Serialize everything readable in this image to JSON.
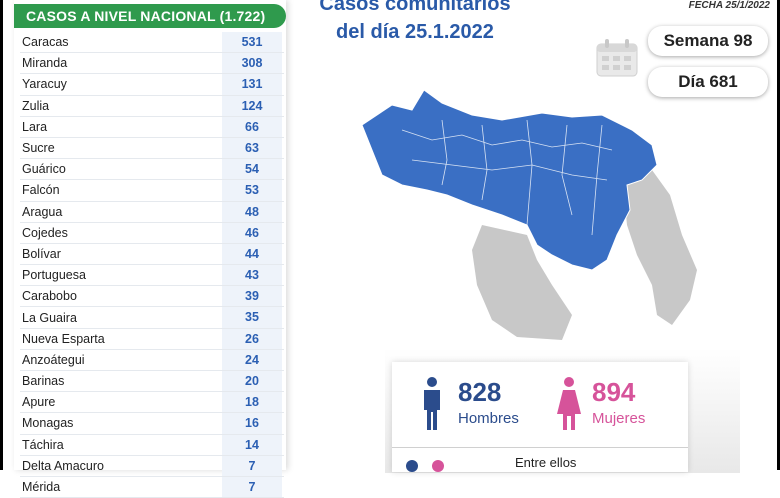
{
  "table": {
    "header": "CASOS A NIVEL NACIONAL  (1.722)",
    "rows": [
      {
        "name": "Caracas",
        "value": "531"
      },
      {
        "name": "Miranda",
        "value": "308"
      },
      {
        "name": "Yaracuy",
        "value": "131"
      },
      {
        "name": "Zulia",
        "value": "124"
      },
      {
        "name": "Lara",
        "value": "66"
      },
      {
        "name": "Sucre",
        "value": "63"
      },
      {
        "name": "Guárico",
        "value": "54"
      },
      {
        "name": "Falcón",
        "value": "53"
      },
      {
        "name": "Aragua",
        "value": "48"
      },
      {
        "name": "Cojedes",
        "value": "46"
      },
      {
        "name": "Bolívar",
        "value": "44"
      },
      {
        "name": "Portuguesa",
        "value": "43"
      },
      {
        "name": "Carabobo",
        "value": "39"
      },
      {
        "name": "La Guaira",
        "value": "35"
      },
      {
        "name": "Nueva Esparta",
        "value": "26"
      },
      {
        "name": "Anzoátegui",
        "value": "24"
      },
      {
        "name": "Barinas",
        "value": "20"
      },
      {
        "name": "Apure",
        "value": "18"
      },
      {
        "name": "Monagas",
        "value": "16"
      },
      {
        "name": "Táchira",
        "value": "14"
      },
      {
        "name": "Delta Amacuro",
        "value": "7"
      },
      {
        "name": "Mérida",
        "value": "7"
      }
    ]
  },
  "title": {
    "line1": "Casos comunitarios",
    "line2": "del día 25.1.2022"
  },
  "fecha": "FECHA 25/1/2022",
  "semana": "Semana 98",
  "dia": "Día 681",
  "stats": {
    "hombres_count": "828",
    "hombres_label": "Hombres",
    "mujeres_count": "894",
    "mujeres_label": "Mujeres",
    "entre_ellos": "Entre ellos"
  },
  "colors": {
    "header_green": "#2f9a4d",
    "title_blue": "#2a5aa8",
    "map_blue": "#3a6fc4",
    "map_gray": "#c8c8c8",
    "hombres_blue": "#2b4c8c",
    "mujeres_pink": "#d6539a"
  },
  "icons": {
    "calendar": "calendar-icon",
    "man": "man-icon",
    "woman": "woman-icon"
  }
}
